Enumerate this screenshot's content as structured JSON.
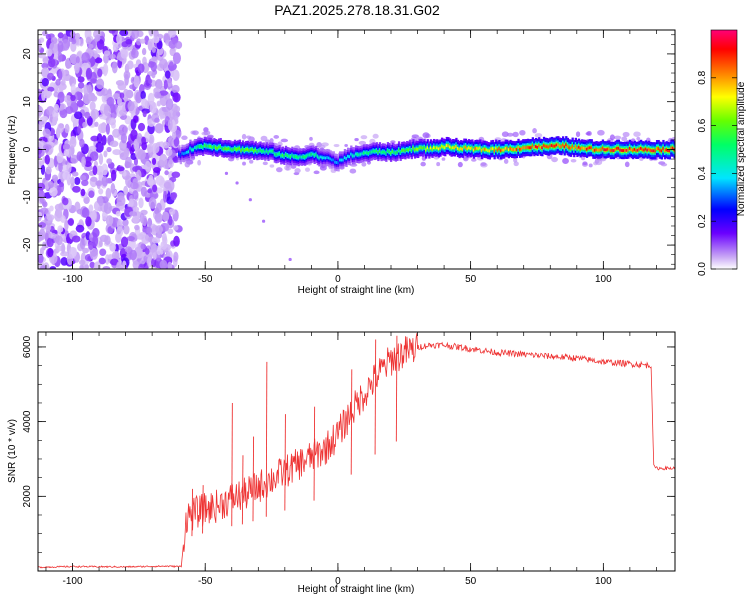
{
  "title": "PAZ1.2025.278.18.31.G02",
  "chart_data": [
    {
      "type": "heatmap",
      "name": "spectrogram",
      "xlabel": "Height of straight line (km)",
      "ylabel": "Frequency (Hz)",
      "xlim": [
        -113,
        127
      ],
      "ylim": [
        -25,
        25
      ],
      "x_ticks": [
        -100,
        -50,
        0,
        50,
        100
      ],
      "y_ticks": [
        -20,
        -10,
        0,
        10,
        20
      ],
      "noise_region_x": [
        -113,
        -60
      ],
      "signal_track": {
        "x": [
          -60,
          -55,
          -50,
          -45,
          -40,
          -35,
          -30,
          -25,
          -20,
          -15,
          -10,
          -5,
          0,
          5,
          10,
          15,
          20,
          25,
          30,
          35,
          40,
          45,
          50,
          55,
          60,
          65,
          70,
          75,
          80,
          85,
          90,
          95,
          100,
          105,
          110,
          115,
          120,
          127
        ],
        "freq": [
          -1.2,
          0.2,
          0.8,
          0.5,
          0.1,
          0.0,
          -0.3,
          -0.6,
          -1.3,
          -1.6,
          -1.0,
          -1.8,
          -2.6,
          -1.2,
          -0.8,
          -0.4,
          -0.6,
          -0.2,
          0.3,
          0.1,
          0.6,
          0.3,
          0.1,
          0.0,
          0.0,
          0.1,
          0.4,
          0.6,
          0.6,
          0.8,
          0.3,
          0.1,
          0.0,
          0.1,
          0.0,
          0.0,
          0.0,
          0.0
        ],
        "amplitude": [
          0.3,
          0.45,
          0.55,
          0.6,
          0.6,
          0.62,
          0.55,
          0.5,
          0.55,
          0.5,
          0.5,
          0.4,
          0.35,
          0.45,
          0.5,
          0.55,
          0.55,
          0.6,
          0.65,
          0.7,
          0.72,
          0.75,
          0.78,
          0.8,
          0.85,
          0.85,
          0.88,
          0.9,
          0.92,
          0.92,
          0.9,
          0.9,
          0.92,
          0.92,
          0.93,
          0.93,
          0.93,
          0.93
        ]
      },
      "colorbar": {
        "label": "Normalized spectral amplitude",
        "ticks": [
          "0.0",
          "0.2",
          "0.4",
          "0.6",
          "0.8"
        ],
        "range": [
          0,
          1
        ]
      }
    },
    {
      "type": "line",
      "name": "snr",
      "xlabel": "Height of straight line (km)",
      "ylabel": "SNR (10 * v/v)",
      "xlim": [
        -113,
        127
      ],
      "ylim": [
        0,
        6400
      ],
      "x_ticks": [
        -100,
        -50,
        0,
        50,
        100
      ],
      "y_ticks": [
        2000,
        4000,
        6000
      ],
      "color": "#ee3333",
      "series": [
        {
          "name": "SNR",
          "x": [
            -113,
            -100,
            -80,
            -65,
            -59,
            -58,
            -57,
            -50,
            -45,
            -40,
            -35,
            -30,
            -25,
            -20,
            -15,
            -10,
            -5,
            0,
            5,
            10,
            15,
            20,
            25,
            30,
            35,
            40,
            50,
            60,
            70,
            80,
            90,
            100,
            110,
            118,
            119,
            120,
            127
          ],
          "y": [
            100,
            120,
            110,
            130,
            120,
            900,
            1500,
            1700,
            1800,
            2000,
            2100,
            2300,
            2500,
            2700,
            2900,
            3100,
            3300,
            3700,
            4300,
            4800,
            5300,
            5700,
            5900,
            6000,
            6050,
            6050,
            5950,
            5850,
            5800,
            5750,
            5700,
            5600,
            5550,
            5500,
            2800,
            2750,
            2750
          ]
        }
      ],
      "spikes": [
        {
          "x": -55,
          "y": 2200
        },
        {
          "x": -51,
          "y": 2300
        },
        {
          "x": -40,
          "y": 4500
        },
        {
          "x": -36,
          "y": 3100
        },
        {
          "x": -32,
          "y": 3600
        },
        {
          "x": -27,
          "y": 5600
        },
        {
          "x": -20,
          "y": 4200
        },
        {
          "x": -9,
          "y": 4400
        },
        {
          "x": 5,
          "y": 5400
        },
        {
          "x": 14,
          "y": 6200
        },
        {
          "x": 22,
          "y": 6300
        }
      ]
    }
  ]
}
